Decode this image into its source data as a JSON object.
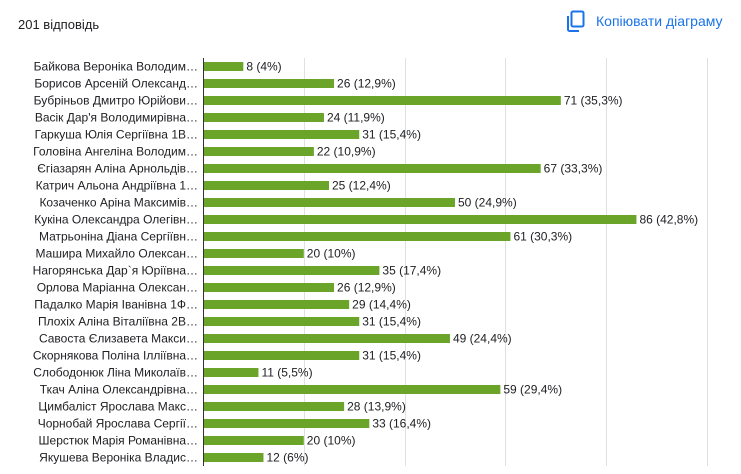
{
  "header": {
    "response_count": "201 відповідь",
    "copy_label": "Копіювати діаграму"
  },
  "colors": {
    "bar": "#6aa428",
    "grid": "#e0e0e0",
    "axis": "#333333",
    "text": "#202124",
    "accent": "#1a73e8"
  },
  "icons": {
    "copy": "copy-icon"
  },
  "chart_data": {
    "type": "bar",
    "orientation": "horizontal",
    "categories": [
      "Байкова Вероніка Володим…",
      "Борисов Арсеній Олександ…",
      "Бубріньов Дмитро Юрійови…",
      "Васік Дар'я Володимирівна…",
      "Гаркуша Юлія Сергіївна 1В…",
      "Головіна Ангеліна Володим…",
      "Єгіазарян Аліна Арнольдів…",
      "Катрич Альона Андріївна 1…",
      "Козаченко Аріна Максимів…",
      "Кукіна Олександра Олегівн…",
      "Матрьоніна Діана Сергіївн…",
      "Машира Михайло Олексан…",
      "Нагорянська Дар`я Юріївна…",
      "Орлова Маріанна Олексан…",
      "Падалко Марія Іванівна 1Ф…",
      "Плохіх Аліна Віталіївна 2В…",
      "Савоста Єлизавета Макси…",
      "Скорнякова Поліна Ілліївна…",
      "Слободонюк Ліна Миколаїв…",
      "Ткач Аліна Олександрівна…",
      "Цимбаліст Ярослава Макс…",
      "Чорнобай Ярослава Сергії…",
      "Шерстюк Марія Романівна…",
      "Якушева Вероніка Владис…"
    ],
    "values": [
      8,
      26,
      71,
      24,
      31,
      22,
      67,
      25,
      50,
      86,
      61,
      20,
      35,
      26,
      29,
      31,
      49,
      31,
      11,
      59,
      28,
      33,
      20,
      12
    ],
    "data_labels": [
      "8 (4%)",
      "26 (12,9%)",
      "71 (35,3%)",
      "24 (11,9%)",
      "31 (15,4%)",
      "22 (10,9%)",
      "67 (33,3%)",
      "25 (12,4%)",
      "50 (24,9%)",
      "86 (42,8%)",
      "61 (30,3%)",
      "20 (10%)",
      "35 (17,4%)",
      "26 (12,9%)",
      "29 (14,4%)",
      "31 (15,4%)",
      "49 (24,4%)",
      "31 (15,4%)",
      "11 (5,5%)",
      "59 (29,4%)",
      "28 (13,9%)",
      "33 (16,4%)",
      "20 (10%)",
      "12 (6%)"
    ],
    "xlim": [
      0,
      100
    ],
    "x_gridlines": [
      0,
      20,
      40,
      60,
      80,
      100
    ],
    "grid": true,
    "legend": "none",
    "title": "",
    "xlabel": "",
    "ylabel": ""
  }
}
